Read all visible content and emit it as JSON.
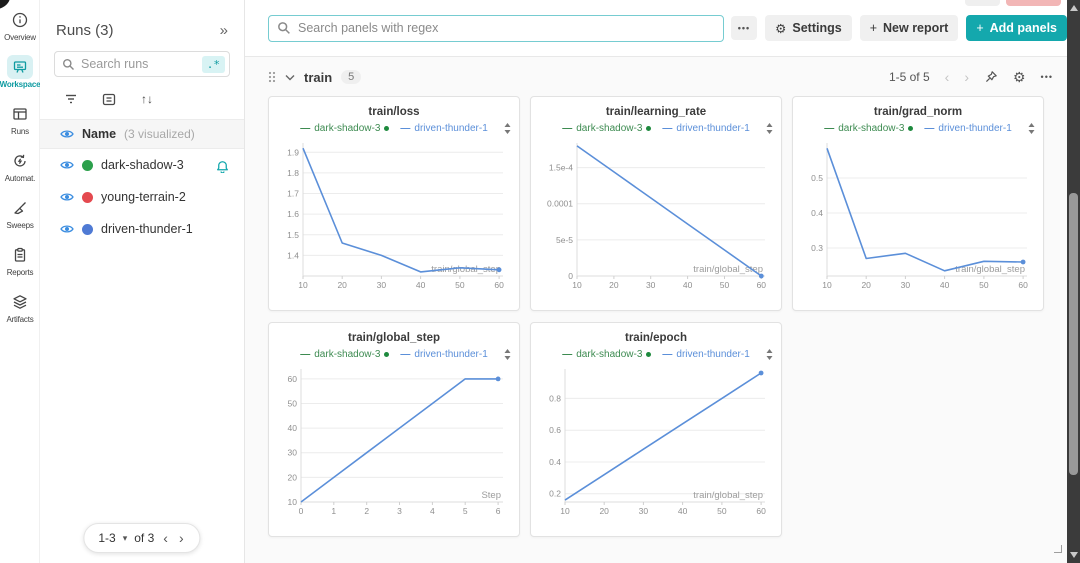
{
  "colors": {
    "accent_teal": "#14a8ad",
    "light_teal_bg": "#d9f1f3",
    "chart_blue": "#5b8fd9",
    "legend_green": "#3d8b51",
    "run_green": "#2ca04c",
    "run_red": "#e4494f",
    "run_blue": "#4f7ad4",
    "eye_blue": "#3b8de0"
  },
  "icons": {
    "collapse": "»",
    "gear": "⚙",
    "dots": "•••",
    "sort": "↑↓",
    "chevron_left": "‹",
    "chevron_right": "›",
    "caret_down": "▾",
    "plus": "+"
  },
  "nav_rail": {
    "items": [
      {
        "label": "Overview",
        "icon": "info-icon",
        "active": false
      },
      {
        "label": "Workspace",
        "icon": "workspace-icon",
        "active": true
      },
      {
        "label": "Runs",
        "icon": "runs-table-icon",
        "active": false
      },
      {
        "label": "Automat.",
        "icon": "automations-icon",
        "active": false
      },
      {
        "label": "Sweeps",
        "icon": "sweeps-broom-icon",
        "active": false
      },
      {
        "label": "Reports",
        "icon": "reports-clipboard-icon",
        "active": false
      },
      {
        "label": "Artifacts",
        "icon": "artifacts-layers-icon",
        "active": false
      }
    ]
  },
  "runs_panel": {
    "title": "Runs (3)",
    "search_placeholder": "Search runs",
    "regex_badge": ".*",
    "header": {
      "name_label": "Name",
      "visualized_label": "(3 visualized)"
    },
    "runs": [
      {
        "name": "dark-shadow-3",
        "dot_color": "#2ca04c",
        "has_bell": true
      },
      {
        "name": "young-terrain-2",
        "dot_color": "#e4494f",
        "has_bell": false
      },
      {
        "name": "driven-thunder-1",
        "dot_color": "#4f7ad4",
        "has_bell": false
      }
    ],
    "pagination": {
      "range": "1-3",
      "of_label": "of 3"
    }
  },
  "toolbar": {
    "search_placeholder": "Search panels with regex",
    "settings_label": "Settings",
    "new_report_label": "New report",
    "add_panels_label": "Add panels"
  },
  "section": {
    "name": "train",
    "count": "5",
    "pagination": "1-5 of 5"
  },
  "chart_data": [
    {
      "type": "line",
      "title": "train/loss",
      "xlabel": "train/global_step",
      "mleft": 26,
      "x": [
        10,
        20,
        30,
        40,
        50,
        60
      ],
      "series": [
        {
          "name": "driven-thunder-1",
          "color": "#5b8fd9",
          "values": [
            1.92,
            1.46,
            1.4,
            1.32,
            1.34,
            1.33
          ]
        }
      ],
      "legend": [
        {
          "name": "dark-shadow-3",
          "color": "#3d8b51",
          "dot": true,
          "dot_color": "#1e8a3e"
        },
        {
          "name": "driven-thunder-1",
          "color": "#5b8fd9",
          "dot": false
        }
      ],
      "xlim": [
        10,
        61
      ],
      "ylim": [
        1.3,
        1.945
      ],
      "xticks": [
        10,
        20,
        30,
        40,
        50,
        60
      ],
      "ytick_vals": [
        1.4,
        1.5,
        1.6,
        1.7,
        1.8,
        1.9
      ],
      "ytick_labels": [
        "1.4",
        "1.5",
        "1.6",
        "1.7",
        "1.8",
        "1.9"
      ],
      "end_dot": true
    },
    {
      "type": "line",
      "title": "train/learning_rate",
      "xlabel": "train/global_step",
      "mleft": 38,
      "x": [
        10,
        20,
        30,
        40,
        50,
        60
      ],
      "series": [
        {
          "name": "driven-thunder-1",
          "color": "#5b8fd9",
          "values": [
            0.00018,
            0.000144,
            0.000108,
            7.2e-05,
            3.6e-05,
            0
          ]
        }
      ],
      "legend": [
        {
          "name": "dark-shadow-3",
          "color": "#3d8b51",
          "dot": true,
          "dot_color": "#1e8a3e"
        },
        {
          "name": "driven-thunder-1",
          "color": "#5b8fd9",
          "dot": false
        }
      ],
      "xlim": [
        10,
        61
      ],
      "ylim": [
        0,
        0.000184
      ],
      "xticks": [
        10,
        20,
        30,
        40,
        50,
        60
      ],
      "ytick_vals": [
        0,
        5e-05,
        0.0001,
        0.00015
      ],
      "ytick_labels": [
        "0",
        "5e-5",
        "0.0001",
        "1.5e-4"
      ],
      "end_dot": true
    },
    {
      "type": "line",
      "title": "train/grad_norm",
      "xlabel": "train/global_step",
      "mleft": 26,
      "x": [
        10,
        20,
        30,
        40,
        50,
        60
      ],
      "series": [
        {
          "name": "driven-thunder-1",
          "color": "#5b8fd9",
          "values": [
            0.585,
            0.27,
            0.285,
            0.235,
            0.262,
            0.26
          ]
        }
      ],
      "legend": [
        {
          "name": "dark-shadow-3",
          "color": "#3d8b51",
          "dot": true,
          "dot_color": "#1e8a3e"
        },
        {
          "name": "driven-thunder-1",
          "color": "#5b8fd9",
          "dot": false
        }
      ],
      "xlim": [
        10,
        61
      ],
      "ylim": [
        0.22,
        0.6
      ],
      "xticks": [
        10,
        20,
        30,
        40,
        50,
        60
      ],
      "ytick_vals": [
        0.3,
        0.4,
        0.5
      ],
      "ytick_labels": [
        "0.3",
        "0.4",
        "0.5"
      ],
      "end_dot": true
    },
    {
      "type": "line",
      "title": "train/global_step",
      "xlabel": "Step",
      "mleft": 24,
      "x": [
        0,
        1,
        2,
        3,
        4,
        5,
        6
      ],
      "series": [
        {
          "name": "driven-thunder-1",
          "color": "#5b8fd9",
          "values": [
            10,
            20,
            30,
            40,
            50,
            60,
            60
          ]
        }
      ],
      "legend": [
        {
          "name": "dark-shadow-3",
          "color": "#3d8b51",
          "dot": true,
          "dot_color": "#1e8a3e"
        },
        {
          "name": "driven-thunder-1",
          "color": "#5b8fd9",
          "dot": false
        }
      ],
      "xlim": [
        0,
        6.15
      ],
      "ylim": [
        10,
        64
      ],
      "xticks": [
        0,
        1,
        2,
        3,
        4,
        5,
        6
      ],
      "ytick_vals": [
        10,
        20,
        30,
        40,
        50,
        60
      ],
      "ytick_labels": [
        "10",
        "20",
        "30",
        "40",
        "50",
        "60"
      ],
      "end_dot": true
    },
    {
      "type": "line",
      "title": "train/epoch",
      "xlabel": "train/global_step",
      "mleft": 26,
      "x": [
        10,
        20,
        30,
        40,
        50,
        60
      ],
      "series": [
        {
          "name": "driven-thunder-1",
          "color": "#5b8fd9",
          "values": [
            0.16,
            0.32,
            0.48,
            0.64,
            0.8,
            0.96
          ]
        }
      ],
      "legend": [
        {
          "name": "dark-shadow-3",
          "color": "#3d8b51",
          "dot": true,
          "dot_color": "#1e8a3e"
        },
        {
          "name": "driven-thunder-1",
          "color": "#5b8fd9",
          "dot": false
        }
      ],
      "xlim": [
        10,
        61
      ],
      "ylim": [
        0.148,
        0.985
      ],
      "xticks": [
        10,
        20,
        30,
        40,
        50,
        60
      ],
      "ytick_vals": [
        0.2,
        0.4,
        0.6,
        0.8
      ],
      "ytick_labels": [
        "0.2",
        "0.4",
        "0.6",
        "0.8"
      ],
      "end_dot": true
    }
  ]
}
